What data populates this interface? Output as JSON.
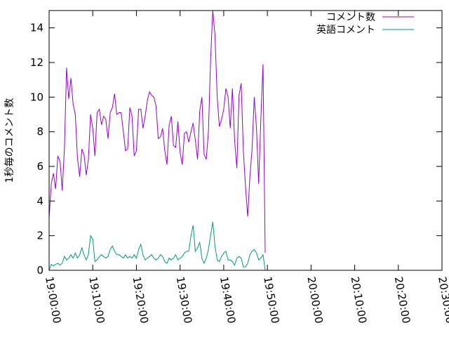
{
  "chart_data": {
    "type": "line",
    "ylabel": "1秒毎のコメント数",
    "xlabel": "",
    "ylim": [
      0,
      15
    ],
    "yticks": [
      0,
      2,
      4,
      6,
      8,
      10,
      12,
      14
    ],
    "xlim": [
      "19:00:00",
      "20:30:00"
    ],
    "xticks": [
      "19:00:00",
      "19:10:00",
      "19:20:00",
      "19:30:00",
      "19:40:00",
      "19:50:00",
      "20:00:00",
      "20:10:00",
      "20:20:00",
      "20:30:00"
    ],
    "legend_position": "top-right",
    "grid": false,
    "series": [
      {
        "name": "コメント数",
        "color": "#9400d3",
        "points": [
          [
            "19:00:00",
            3.0
          ],
          [
            "19:00:30",
            5.0
          ],
          [
            "19:01:00",
            5.6
          ],
          [
            "19:01:30",
            4.7
          ],
          [
            "19:02:00",
            6.6
          ],
          [
            "19:02:30",
            6.3
          ],
          [
            "19:03:00",
            4.6
          ],
          [
            "19:03:30",
            7.0
          ],
          [
            "19:04:00",
            11.7
          ],
          [
            "19:04:30",
            9.9
          ],
          [
            "19:05:00",
            11.1
          ],
          [
            "19:05:30",
            9.6
          ],
          [
            "19:06:00",
            9.0
          ],
          [
            "19:06:30",
            6.5
          ],
          [
            "19:07:00",
            5.4
          ],
          [
            "19:07:30",
            7.0
          ],
          [
            "19:08:00",
            6.7
          ],
          [
            "19:08:30",
            5.5
          ],
          [
            "19:09:00",
            6.4
          ],
          [
            "19:09:30",
            9.0
          ],
          [
            "19:10:00",
            8.2
          ],
          [
            "19:10:30",
            6.6
          ],
          [
            "19:11:00",
            9.1
          ],
          [
            "19:11:30",
            9.3
          ],
          [
            "19:12:00",
            8.4
          ],
          [
            "19:12:30",
            8.9
          ],
          [
            "19:13:00",
            8.7
          ],
          [
            "19:13:30",
            7.6
          ],
          [
            "19:14:00",
            9.1
          ],
          [
            "19:14:30",
            9.4
          ],
          [
            "19:15:00",
            10.2
          ],
          [
            "19:15:30",
            9.0
          ],
          [
            "19:16:00",
            9.1
          ],
          [
            "19:16:30",
            9.1
          ],
          [
            "19:17:00",
            8.0
          ],
          [
            "19:17:30",
            6.9
          ],
          [
            "19:18:00",
            7.0
          ],
          [
            "19:18:30",
            9.4
          ],
          [
            "19:19:00",
            8.9
          ],
          [
            "19:19:30",
            6.6
          ],
          [
            "19:20:00",
            6.9
          ],
          [
            "19:20:30",
            9.3
          ],
          [
            "19:21:00",
            9.3
          ],
          [
            "19:21:30",
            8.2
          ],
          [
            "19:22:00",
            8.9
          ],
          [
            "19:22:30",
            9.8
          ],
          [
            "19:23:00",
            10.3
          ],
          [
            "19:23:30",
            10.1
          ],
          [
            "19:24:00",
            10.0
          ],
          [
            "19:24:30",
            9.5
          ],
          [
            "19:25:00",
            7.6
          ],
          [
            "19:25:30",
            7.7
          ],
          [
            "19:26:00",
            8.2
          ],
          [
            "19:26:30",
            6.9
          ],
          [
            "19:27:00",
            6.1
          ],
          [
            "19:27:30",
            8.4
          ],
          [
            "19:28:00",
            8.9
          ],
          [
            "19:28:30",
            7.2
          ],
          [
            "19:29:00",
            7.1
          ],
          [
            "19:29:30",
            8.6
          ],
          [
            "19:30:00",
            6.8
          ],
          [
            "19:30:30",
            6.1
          ],
          [
            "19:31:00",
            7.9
          ],
          [
            "19:31:30",
            8.0
          ],
          [
            "19:32:00",
            7.4
          ],
          [
            "19:32:30",
            8.0
          ],
          [
            "19:33:00",
            8.5
          ],
          [
            "19:33:30",
            7.5
          ],
          [
            "19:34:00",
            6.4
          ],
          [
            "19:34:30",
            9.2
          ],
          [
            "19:35:00",
            10.0
          ],
          [
            "19:35:30",
            6.7
          ],
          [
            "19:36:00",
            6.4
          ],
          [
            "19:36:30",
            8.0
          ],
          [
            "19:37:00",
            12.2
          ],
          [
            "19:37:30",
            15.0
          ],
          [
            "19:38:00",
            13.6
          ],
          [
            "19:38:30",
            10.0
          ],
          [
            "19:39:00",
            8.3
          ],
          [
            "19:39:30",
            8.7
          ],
          [
            "19:40:00",
            9.3
          ],
          [
            "19:40:30",
            10.5
          ],
          [
            "19:41:00",
            10.0
          ],
          [
            "19:41:30",
            8.2
          ],
          [
            "19:42:00",
            10.5
          ],
          [
            "19:42:30",
            7.5
          ],
          [
            "19:43:00",
            5.9
          ],
          [
            "19:43:30",
            10.1
          ],
          [
            "19:44:00",
            10.8
          ],
          [
            "19:44:30",
            6.9
          ],
          [
            "19:45:00",
            4.8
          ],
          [
            "19:45:30",
            3.1
          ],
          [
            "19:46:00",
            5.4
          ],
          [
            "19:46:30",
            7.0
          ],
          [
            "19:47:00",
            10.0
          ],
          [
            "19:47:30",
            8.2
          ],
          [
            "19:48:00",
            5.0
          ],
          [
            "19:48:30",
            8.7
          ],
          [
            "19:49:00",
            11.9
          ],
          [
            "19:49:30",
            1.0
          ]
        ]
      },
      {
        "name": "英語コメント",
        "color": "#009e73",
        "points": [
          [
            "19:00:00",
            0.0
          ],
          [
            "19:00:30",
            0.35
          ],
          [
            "19:01:00",
            0.25
          ],
          [
            "19:01:30",
            0.35
          ],
          [
            "19:02:00",
            0.4
          ],
          [
            "19:02:30",
            0.3
          ],
          [
            "19:03:00",
            0.4
          ],
          [
            "19:03:30",
            0.8
          ],
          [
            "19:04:00",
            0.6
          ],
          [
            "19:04:30",
            0.7
          ],
          [
            "19:05:00",
            0.9
          ],
          [
            "19:05:30",
            0.7
          ],
          [
            "19:06:00",
            1.0
          ],
          [
            "19:06:30",
            0.7
          ],
          [
            "19:07:00",
            0.9
          ],
          [
            "19:07:30",
            1.3
          ],
          [
            "19:08:00",
            0.9
          ],
          [
            "19:08:30",
            0.6
          ],
          [
            "19:09:00",
            0.9
          ],
          [
            "19:09:30",
            2.0
          ],
          [
            "19:10:00",
            1.8
          ],
          [
            "19:10:30",
            0.5
          ],
          [
            "19:11:00",
            0.6
          ],
          [
            "19:11:30",
            0.8
          ],
          [
            "19:12:00",
            0.9
          ],
          [
            "19:12:30",
            0.8
          ],
          [
            "19:13:00",
            0.7
          ],
          [
            "19:13:30",
            0.8
          ],
          [
            "19:14:00",
            1.2
          ],
          [
            "19:14:30",
            1.4
          ],
          [
            "19:15:00",
            1.1
          ],
          [
            "19:15:30",
            0.9
          ],
          [
            "19:16:00",
            0.9
          ],
          [
            "19:16:30",
            0.8
          ],
          [
            "19:17:00",
            0.7
          ],
          [
            "19:17:30",
            0.9
          ],
          [
            "19:18:00",
            0.7
          ],
          [
            "19:18:30",
            0.8
          ],
          [
            "19:19:00",
            0.7
          ],
          [
            "19:19:30",
            0.9
          ],
          [
            "19:20:00",
            0.7
          ],
          [
            "19:20:30",
            1.2
          ],
          [
            "19:21:00",
            1.5
          ],
          [
            "19:21:30",
            0.9
          ],
          [
            "19:22:00",
            0.6
          ],
          [
            "19:22:30",
            0.7
          ],
          [
            "19:23:00",
            0.8
          ],
          [
            "19:23:30",
            0.9
          ],
          [
            "19:24:00",
            0.7
          ],
          [
            "19:24:30",
            0.6
          ],
          [
            "19:25:00",
            0.7
          ],
          [
            "19:25:30",
            0.9
          ],
          [
            "19:26:00",
            0.8
          ],
          [
            "19:26:30",
            0.5
          ],
          [
            "19:27:00",
            0.4
          ],
          [
            "19:27:30",
            0.7
          ],
          [
            "19:28:00",
            0.6
          ],
          [
            "19:28:30",
            0.7
          ],
          [
            "19:29:00",
            0.9
          ],
          [
            "19:29:30",
            0.6
          ],
          [
            "19:30:00",
            0.7
          ],
          [
            "19:30:30",
            0.8
          ],
          [
            "19:31:00",
            1.0
          ],
          [
            "19:31:30",
            1.1
          ],
          [
            "19:32:00",
            1.1
          ],
          [
            "19:32:30",
            2.0
          ],
          [
            "19:33:00",
            2.6
          ],
          [
            "19:33:30",
            1.1
          ],
          [
            "19:34:00",
            1.3
          ],
          [
            "19:34:30",
            1.6
          ],
          [
            "19:35:00",
            0.7
          ],
          [
            "19:35:30",
            0.4
          ],
          [
            "19:36:00",
            0.7
          ],
          [
            "19:36:30",
            1.2
          ],
          [
            "19:37:00",
            2.0
          ],
          [
            "19:37:30",
            2.8
          ],
          [
            "19:38:00",
            1.4
          ],
          [
            "19:38:30",
            0.6
          ],
          [
            "19:39:00",
            0.5
          ],
          [
            "19:39:30",
            0.8
          ],
          [
            "19:40:00",
            1.0
          ],
          [
            "19:40:30",
            1.1
          ],
          [
            "19:41:00",
            0.6
          ],
          [
            "19:41:30",
            0.6
          ],
          [
            "19:42:00",
            0.5
          ],
          [
            "19:42:30",
            0.3
          ],
          [
            "19:43:00",
            0.7
          ],
          [
            "19:43:30",
            0.8
          ],
          [
            "19:44:00",
            0.7
          ],
          [
            "19:44:30",
            0.2
          ],
          [
            "19:45:00",
            0.2
          ],
          [
            "19:45:30",
            0.4
          ],
          [
            "19:46:00",
            0.9
          ],
          [
            "19:46:30",
            1.1
          ],
          [
            "19:47:00",
            1.2
          ],
          [
            "19:47:30",
            1.0
          ],
          [
            "19:48:00",
            0.6
          ],
          [
            "19:48:30",
            0.7
          ],
          [
            "19:49:00",
            0.9
          ],
          [
            "19:49:30",
            0.0
          ]
        ]
      }
    ]
  }
}
